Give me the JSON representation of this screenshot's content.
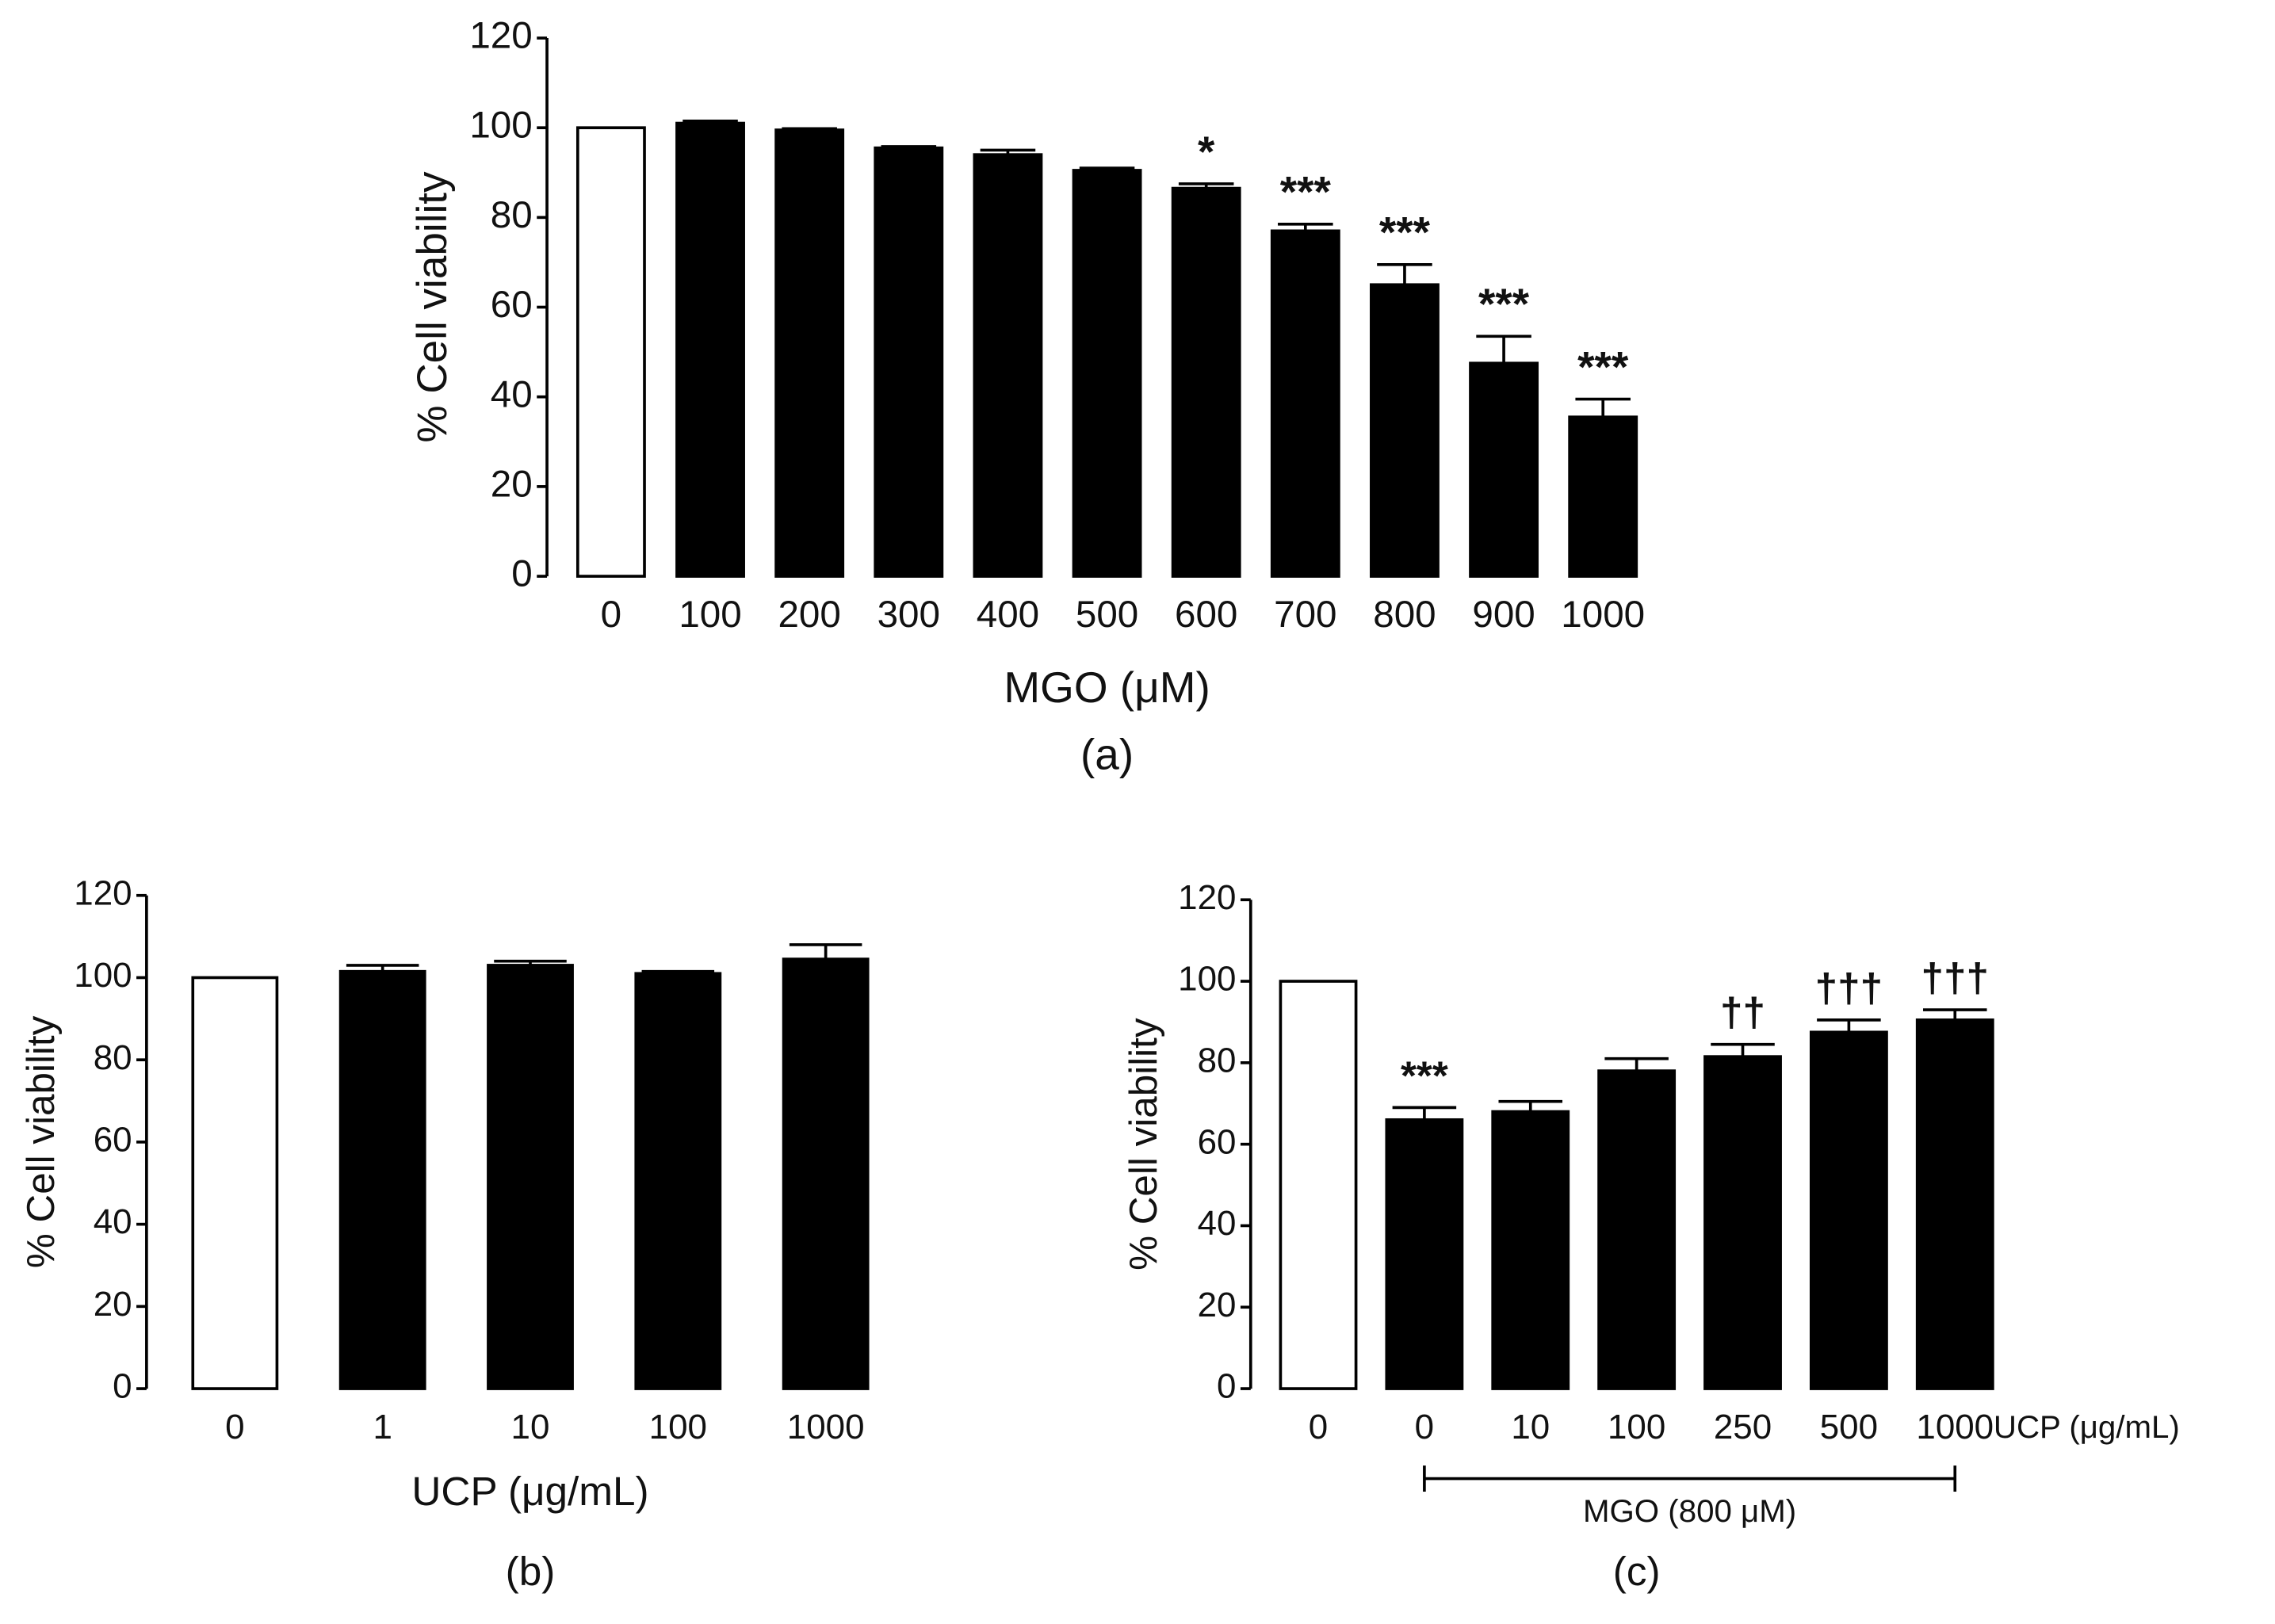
{
  "chart_data": [
    {
      "type": "bar",
      "caption": "(a)",
      "y_label": "% Cell viability",
      "x_label": "MGO (μM)",
      "categories": [
        "0",
        "100",
        "200",
        "300",
        "400",
        "500",
        "600",
        "700",
        "800",
        "900",
        "1000"
      ],
      "values": [
        100,
        101,
        99.5,
        95.5,
        94,
        90.5,
        86.5,
        77,
        65,
        47.5,
        35.5
      ],
      "errors": [
        0,
        0.5,
        0.3,
        0.3,
        1,
        0.5,
        1,
        1.5,
        4.5,
        6,
        4
      ],
      "annotations": [
        null,
        null,
        null,
        null,
        null,
        null,
        "*",
        "***",
        "***",
        "***",
        "***"
      ],
      "colors": [
        "#ffffff",
        "#000000",
        "#000000",
        "#000000",
        "#000000",
        "#000000",
        "#000000",
        "#000000",
        "#000000",
        "#000000",
        "#000000"
      ],
      "ylim": [
        0,
        120
      ],
      "yticks": [
        0,
        20,
        40,
        60,
        80,
        100,
        120
      ]
    },
    {
      "type": "bar",
      "caption": "(b)",
      "y_label": "% Cell viability",
      "x_label": "UCP (μg/mL)",
      "categories": [
        "0",
        "1",
        "10",
        "100",
        "1000"
      ],
      "values": [
        100,
        101.5,
        103,
        101,
        104.5
      ],
      "errors": [
        0,
        1.5,
        1,
        0.5,
        3.5
      ],
      "colors": [
        "#ffffff",
        "#000000",
        "#000000",
        "#000000",
        "#000000"
      ],
      "ylim": [
        0,
        120
      ],
      "yticks": [
        0,
        20,
        40,
        60,
        80,
        100,
        120
      ]
    },
    {
      "type": "bar",
      "caption": "(c)",
      "y_label": "% Cell viability",
      "x_label": "UCP (μg/mL)",
      "group_label": "MGO (800 μM)",
      "categories": [
        "0",
        "0",
        "10",
        "100",
        "250",
        "500",
        "1000"
      ],
      "values": [
        100,
        66,
        68,
        78,
        81.5,
        87.5,
        90.5
      ],
      "errors": [
        0,
        3,
        2.5,
        3,
        3,
        3,
        2.5
      ],
      "annotations": [
        null,
        "***",
        null,
        null,
        "††",
        "†††",
        "†††"
      ],
      "colors": [
        "#ffffff",
        "#000000",
        "#000000",
        "#000000",
        "#000000",
        "#000000",
        "#000000"
      ],
      "ylim": [
        0,
        120
      ],
      "yticks": [
        0,
        20,
        40,
        60,
        80,
        100,
        120
      ]
    }
  ]
}
